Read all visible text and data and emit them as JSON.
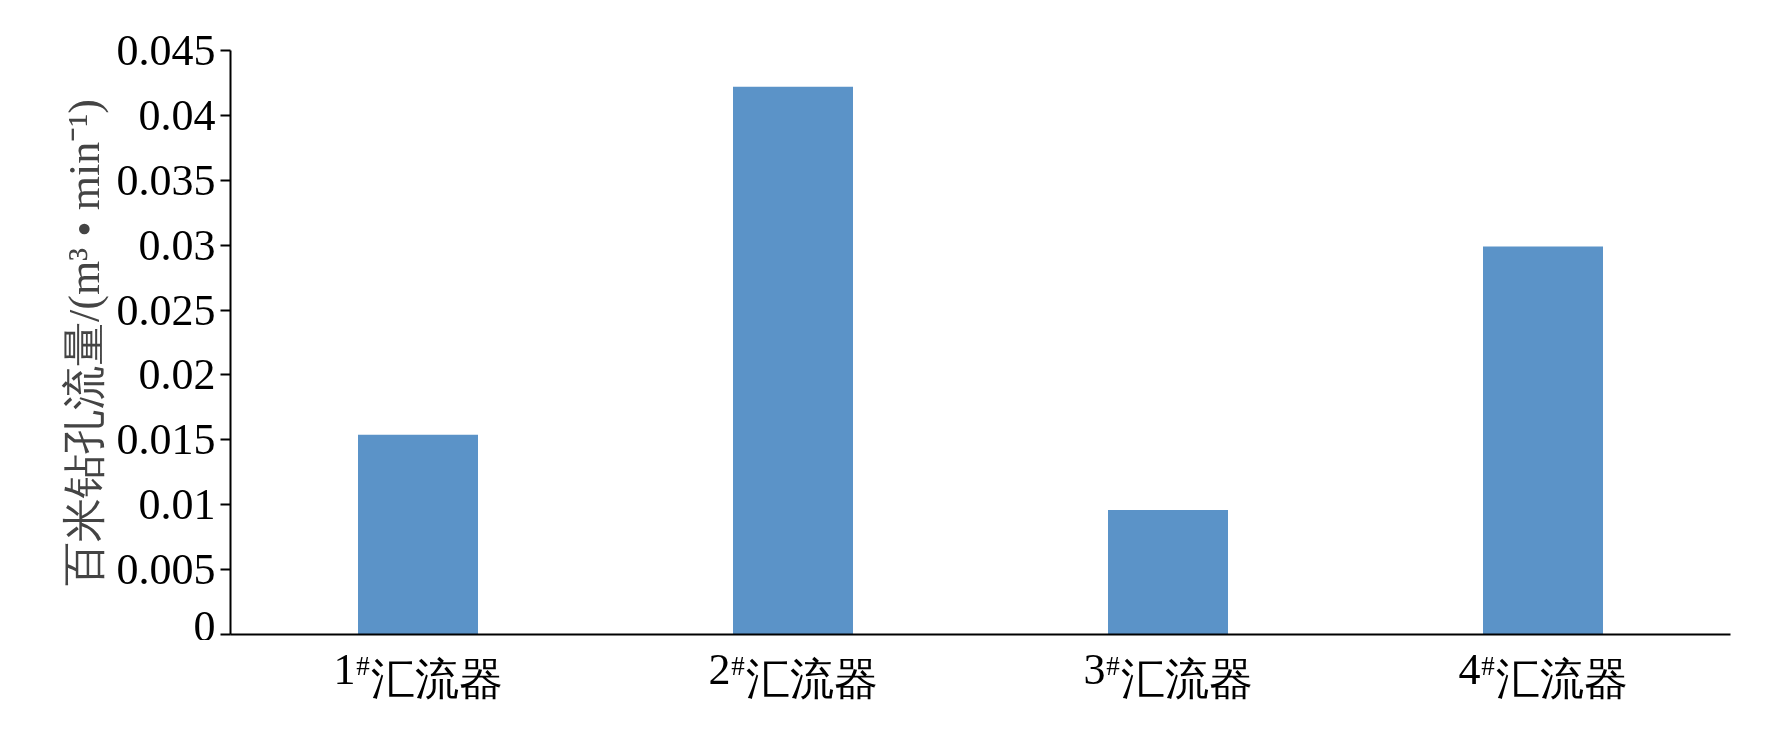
{
  "chart_data": {
    "type": "bar",
    "ylabel": "百米钻孔流量/(m³ • min⁻¹)",
    "categories": [
      "1$^{#}$汇流器",
      "2$^{#}$汇流器",
      "3$^{#}$汇流器",
      "4$^{#}$汇流器"
    ],
    "values": [
      0.0154,
      0.0422,
      0.0096,
      0.0299
    ],
    "color": "#5b93c8",
    "ylim": [
      0,
      0.045
    ],
    "yticks": [
      0,
      0.005,
      0.01,
      0.015,
      0.02,
      0.025,
      0.03,
      0.035,
      0.04,
      0.045
    ],
    "grid": false
  }
}
